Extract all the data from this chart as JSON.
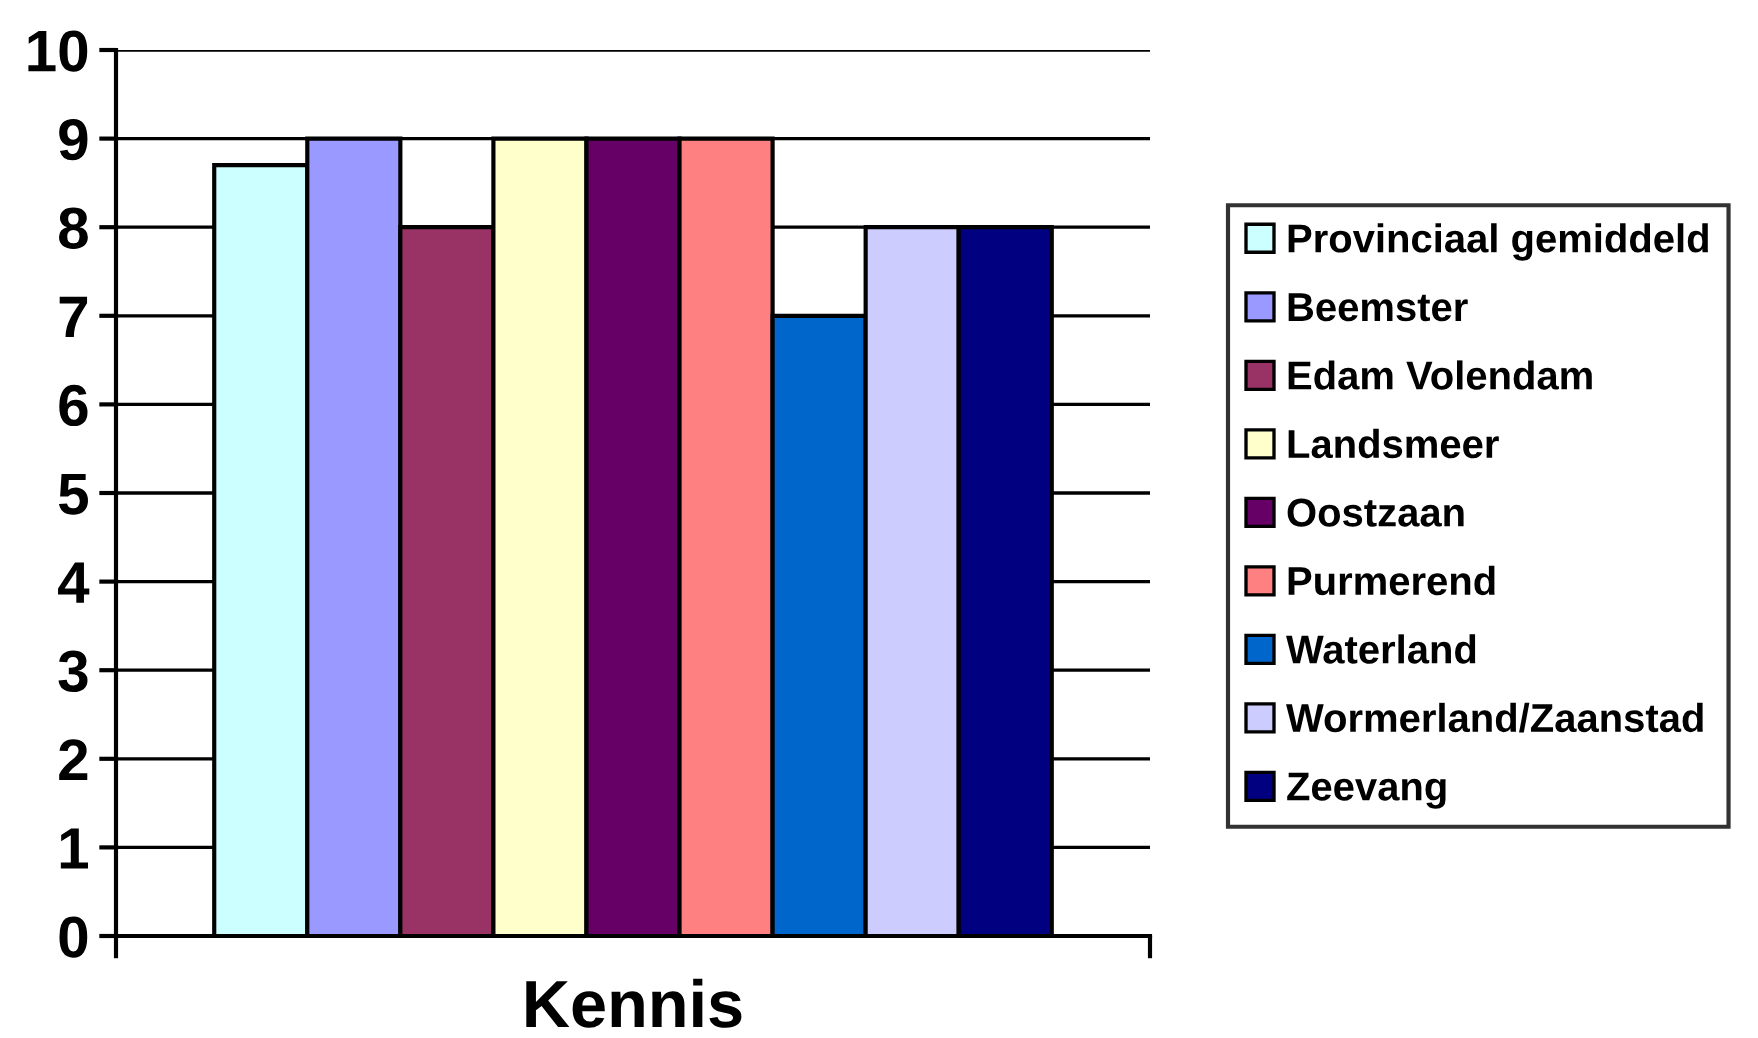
{
  "chart_data": {
    "type": "bar",
    "categories": [
      null
    ],
    "xlabel": "Kennis",
    "series": [
      {
        "name": "Provinciaal gemiddeld",
        "color": "#ccffff",
        "values": [
          8.7
        ]
      },
      {
        "name": "Beemster",
        "color": "#9999ff",
        "values": [
          9
        ]
      },
      {
        "name": "Edam Volendam",
        "color": "#993366",
        "values": [
          8
        ]
      },
      {
        "name": "Landsmeer",
        "color": "#ffffcc",
        "values": [
          9
        ]
      },
      {
        "name": "Oostzaan",
        "color": "#660066",
        "values": [
          9
        ]
      },
      {
        "name": "Purmerend",
        "color": "#ff8080",
        "values": [
          9
        ]
      },
      {
        "name": "Waterland",
        "color": "#0066cc",
        "values": [
          7
        ]
      },
      {
        "name": "Wormerland/Zaanstad",
        "color": "#ccccff",
        "values": [
          8
        ]
      },
      {
        "name": "Zeevang",
        "color": "#000080",
        "values": [
          8
        ]
      }
    ],
    "ylim": [
      0,
      10
    ],
    "yticks": [
      0,
      1,
      2,
      3,
      4,
      5,
      6,
      7,
      8,
      9,
      10
    ],
    "grid": "y",
    "legend": "right"
  }
}
